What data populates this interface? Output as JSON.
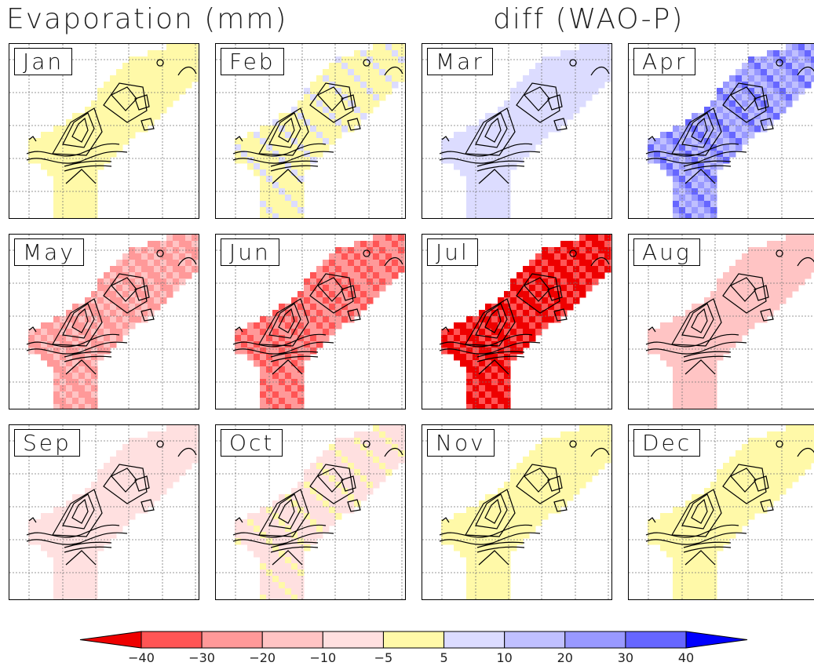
{
  "title_left": "Evaporation (mm)",
  "title_right": "diff (WAO-P)",
  "chart_data": {
    "type": "heatmap",
    "panels": [
      {
        "label": "Jan",
        "anomaly": 0.1
      },
      {
        "label": "Feb",
        "anomaly": 0.15
      },
      {
        "label": "Mar",
        "anomaly": 0.35
      },
      {
        "label": "Apr",
        "anomaly": 0.75
      },
      {
        "label": "May",
        "anomaly": -0.6
      },
      {
        "label": "Jun",
        "anomaly": -0.7
      },
      {
        "label": "Jul",
        "anomaly": -0.95
      },
      {
        "label": "Aug",
        "anomaly": -0.45
      },
      {
        "label": "Sep",
        "anomaly": -0.25
      },
      {
        "label": "Oct",
        "anomaly": -0.2
      },
      {
        "label": "Nov",
        "anomaly": 0.0
      },
      {
        "label": "Dec",
        "anomaly": 0.0
      }
    ],
    "colorbar": {
      "ticks": [
        "-40",
        "-30",
        "-20",
        "-10",
        "-5",
        "5",
        "10",
        "20",
        "30",
        "40"
      ],
      "colors": [
        "#ee0000",
        "#ff5555",
        "#ff9999",
        "#ffc4c4",
        "#ffe0e0",
        "#fff9a8",
        "#dcdcff",
        "#c0c0ff",
        "#9999ff",
        "#6666ff",
        "#0000ff"
      ]
    }
  }
}
